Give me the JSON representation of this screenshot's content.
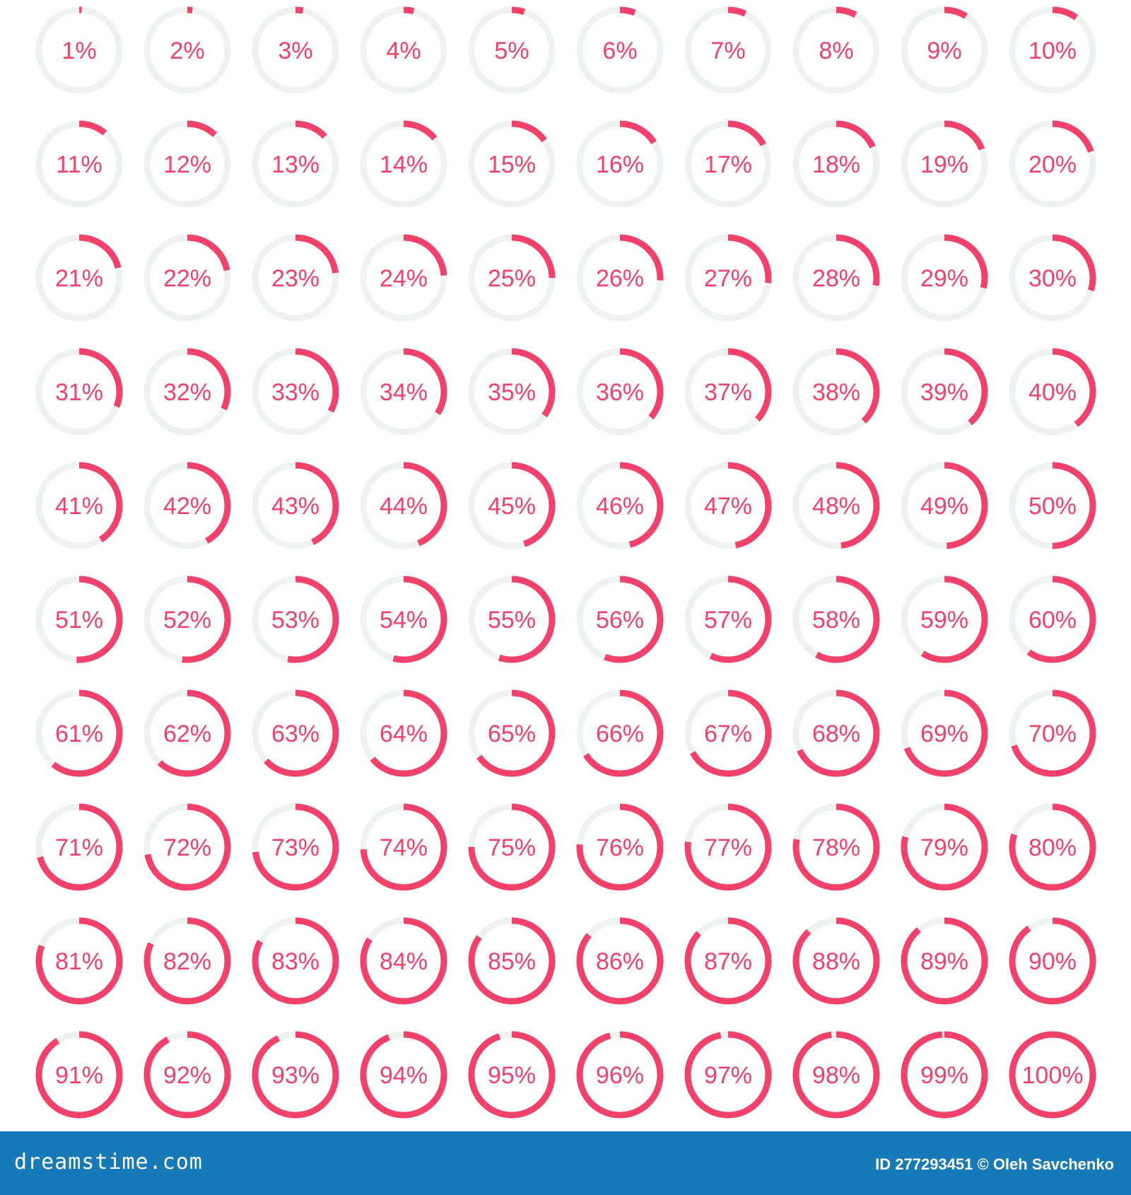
{
  "palette": {
    "accent": "#f2416b",
    "track": "#eef3f0",
    "footer_bg": "#1679b8",
    "footer_text": "#ffffff"
  },
  "rings": {
    "count": 100,
    "columns": 10,
    "label_suffix": "%",
    "values": [
      1,
      2,
      3,
      4,
      5,
      6,
      7,
      8,
      9,
      10,
      11,
      12,
      13,
      14,
      15,
      16,
      17,
      18,
      19,
      20,
      21,
      22,
      23,
      24,
      25,
      26,
      27,
      28,
      29,
      30,
      31,
      32,
      33,
      34,
      35,
      36,
      37,
      38,
      39,
      40,
      41,
      42,
      43,
      44,
      45,
      46,
      47,
      48,
      49,
      50,
      51,
      52,
      53,
      54,
      55,
      56,
      57,
      58,
      59,
      60,
      61,
      62,
      63,
      64,
      65,
      66,
      67,
      68,
      69,
      70,
      71,
      72,
      73,
      74,
      75,
      76,
      77,
      78,
      79,
      80,
      81,
      82,
      83,
      84,
      85,
      86,
      87,
      88,
      89,
      90,
      91,
      92,
      93,
      94,
      95,
      96,
      97,
      98,
      99,
      100
    ],
    "labels": [
      "1%",
      "2%",
      "3%",
      "4%",
      "5%",
      "6%",
      "7%",
      "8%",
      "9%",
      "10%",
      "11%",
      "12%",
      "13%",
      "14%",
      "15%",
      "16%",
      "17%",
      "18%",
      "19%",
      "20%",
      "21%",
      "22%",
      "23%",
      "24%",
      "25%",
      "26%",
      "27%",
      "28%",
      "29%",
      "30%",
      "31%",
      "32%",
      "33%",
      "34%",
      "35%",
      "36%",
      "37%",
      "38%",
      "39%",
      "40%",
      "41%",
      "42%",
      "43%",
      "44%",
      "45%",
      "46%",
      "47%",
      "48%",
      "49%",
      "50%",
      "51%",
      "52%",
      "53%",
      "54%",
      "55%",
      "56%",
      "57%",
      "58%",
      "59%",
      "60%",
      "61%",
      "62%",
      "63%",
      "64%",
      "65%",
      "66%",
      "67%",
      "68%",
      "69%",
      "70%",
      "71%",
      "72%",
      "73%",
      "74%",
      "75%",
      "76%",
      "77%",
      "78%",
      "79%",
      "80%",
      "81%",
      "82%",
      "83%",
      "84%",
      "85%",
      "86%",
      "87%",
      "88%",
      "89%",
      "90%",
      "91%",
      "92%",
      "93%",
      "94%",
      "95%",
      "96%",
      "97%",
      "98%",
      "99%",
      "100%"
    ]
  },
  "footer": {
    "brand": "dreamstime.com",
    "credit": "ID 277293451 © Oleh Savchenko"
  }
}
